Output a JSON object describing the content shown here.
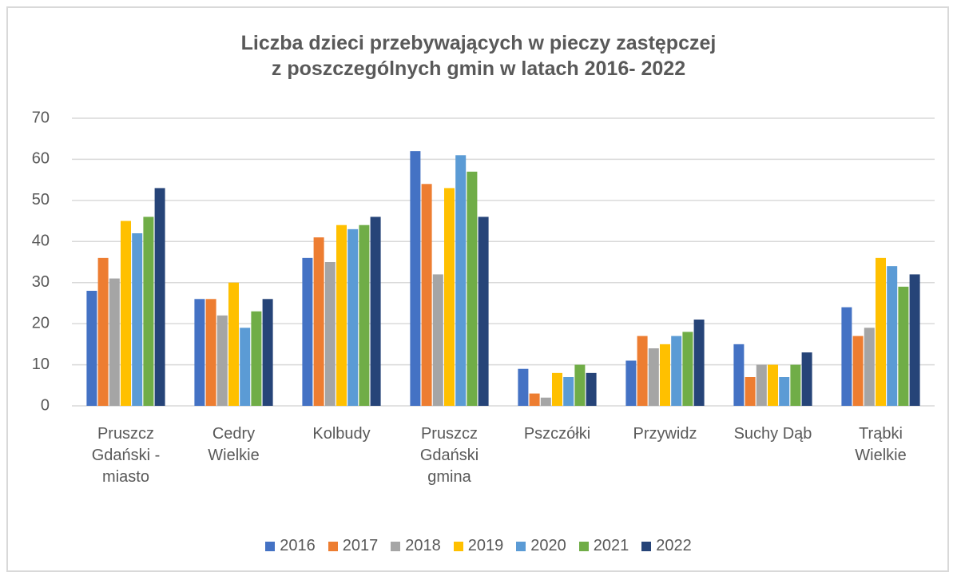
{
  "chart_data": {
    "type": "bar",
    "title": [
      "Liczba dzieci przebywających w pieczy zastępczej",
      "z poszczególnych gmin w latach 2016- 2022"
    ],
    "categories": [
      "Pruszcz Gdański - miasto",
      "Cedry Wielkie",
      "Kolbudy",
      "Pruszcz Gdański gmina",
      "Pszczółki",
      "Przywidz",
      "Suchy Dąb",
      "Trąbki Wielkie"
    ],
    "series": [
      {
        "name": "2016",
        "color": "#4472c4",
        "values": [
          28,
          26,
          36,
          62,
          9,
          11,
          15,
          24
        ]
      },
      {
        "name": "2017",
        "color": "#ed7d31",
        "values": [
          36,
          26,
          41,
          54,
          3,
          17,
          7,
          17
        ]
      },
      {
        "name": "2018",
        "color": "#a5a5a5",
        "values": [
          31,
          22,
          35,
          32,
          2,
          14,
          10,
          19
        ]
      },
      {
        "name": "2019",
        "color": "#ffc000",
        "values": [
          45,
          30,
          44,
          53,
          8,
          15,
          10,
          36
        ]
      },
      {
        "name": "2020",
        "color": "#5b9bd5",
        "values": [
          42,
          19,
          43,
          61,
          7,
          17,
          7,
          34
        ]
      },
      {
        "name": "2021",
        "color": "#70ad47",
        "values": [
          46,
          23,
          44,
          57,
          10,
          18,
          10,
          29
        ]
      },
      {
        "name": "2022",
        "color": "#264478",
        "values": [
          53,
          26,
          46,
          46,
          8,
          21,
          13,
          32
        ]
      }
    ],
    "ylim": [
      0,
      70
    ],
    "yticks": [
      0,
      10,
      20,
      30,
      40,
      50,
      60,
      70
    ],
    "grid": true,
    "legend": "bottom"
  }
}
